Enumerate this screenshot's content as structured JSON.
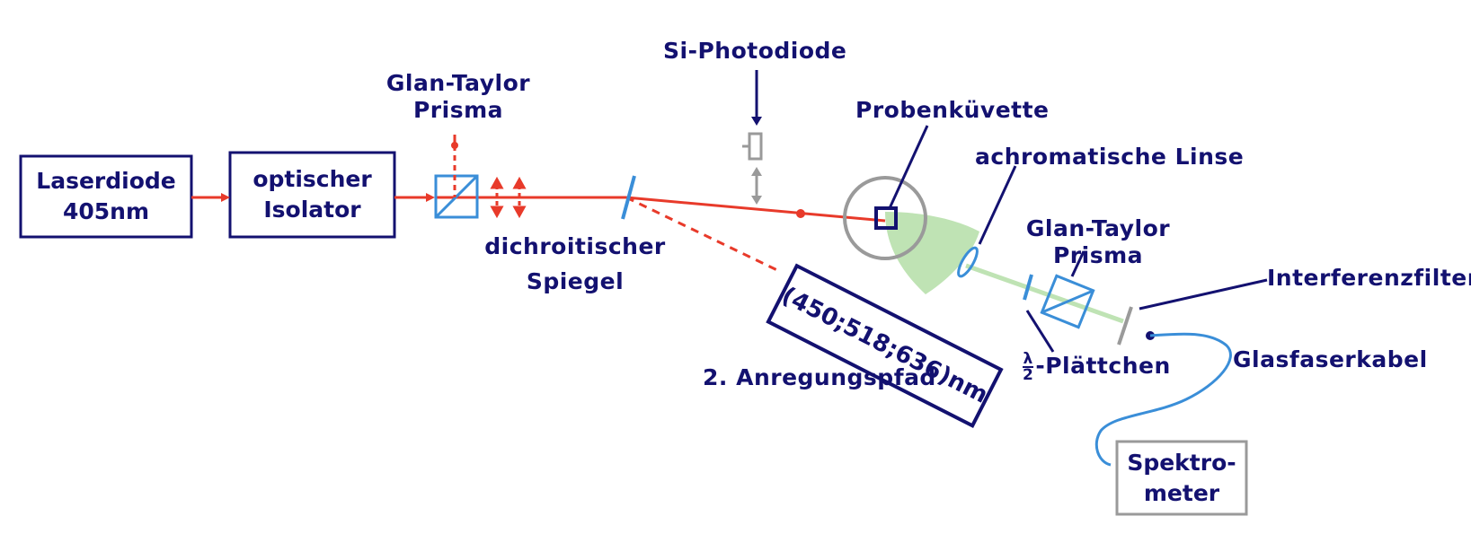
{
  "components": {
    "laser": {
      "line1": "Laserdiode",
      "line2": "405nm"
    },
    "isolator": {
      "line1": "optischer",
      "line2": "Isolator"
    },
    "prism1": {
      "line1": "Glan-Taylor",
      "line2": "Prisma"
    },
    "dichroic": {
      "line1": "dichroitischer",
      "line2": "Spiegel"
    },
    "photodiode": {
      "label": "Si-Photodiode"
    },
    "cuvette": {
      "label": "Probenküvette"
    },
    "lens": {
      "label": "achromatische Linse"
    },
    "prism2": {
      "line1": "Glan-Taylor",
      "line2": "Prisma"
    },
    "filter": {
      "label": "Interferenzfilter"
    },
    "fiber": {
      "label": "Glasfaserkabel"
    },
    "waveplate": {
      "frac_num": "λ",
      "frac_den": "2",
      "label": "-Plättchen"
    },
    "spectrometer": {
      "line1": "Spektro-",
      "line2": "meter"
    },
    "second_path": {
      "box_text": "(450;518;636)nm",
      "label": "2. Anregungspfad"
    }
  },
  "colors": {
    "ink": "#131170",
    "laser": "#e83a2a",
    "optics": "#3a8ed8",
    "detector": "#9a9a9a",
    "fluorescence": "#bfe3b4"
  }
}
